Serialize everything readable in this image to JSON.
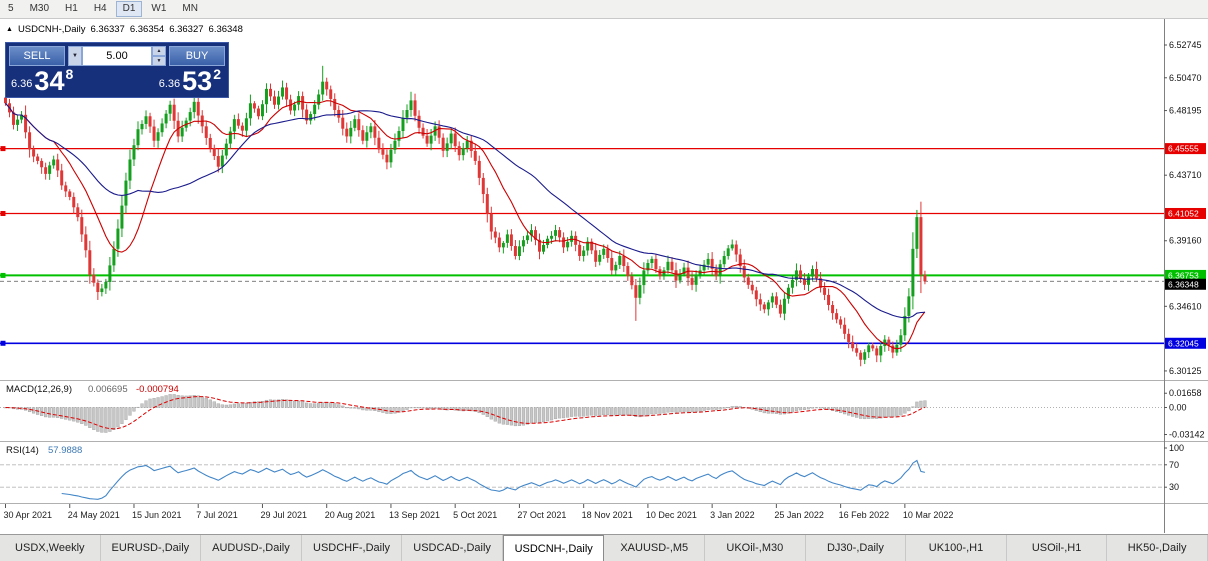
{
  "toolbar": {
    "periods": [
      "5",
      "M30",
      "H1",
      "H4",
      "D1",
      "W1",
      "MN"
    ],
    "active": "D1"
  },
  "chart_header": {
    "symbol": "USDCNH-,Daily",
    "open": "6.36337",
    "high": "6.36354",
    "low": "6.36327",
    "close": "6.36348"
  },
  "icons": {
    "triangle_up": "▲",
    "dropdown_arrow": "▼",
    "spinner_up": "▲",
    "spinner_down": "▼"
  },
  "trade_panel": {
    "sell_label": "SELL",
    "buy_label": "BUY",
    "volume": "5.00",
    "sell_price": {
      "prefix": "6.36",
      "big": "34",
      "sup": "8"
    },
    "buy_price": {
      "prefix": "6.36",
      "big": "53",
      "sup": "2"
    }
  },
  "chart_data": {
    "type": "candlestick",
    "symbol": "USDCNH",
    "timeframe": "Daily",
    "up_color": "#14a01e",
    "down_color": "#e03636",
    "n_candles": 230,
    "close_anchors": [
      0,
      6.487,
      2,
      6.472,
      4,
      6.479,
      6,
      6.455,
      8,
      6.447,
      10,
      6.438,
      12,
      6.448,
      14,
      6.43,
      16,
      6.422,
      18,
      6.408,
      20,
      6.385,
      21,
      6.368,
      23,
      6.356,
      25,
      6.363,
      27,
      6.386,
      29,
      6.416,
      31,
      6.448,
      33,
      6.469,
      35,
      6.478,
      37,
      6.461,
      39,
      6.473,
      41,
      6.486,
      43,
      6.464,
      45,
      6.475,
      47,
      6.488,
      49,
      6.471,
      51,
      6.456,
      53,
      6.443,
      55,
      6.459,
      57,
      6.476,
      59,
      6.468,
      61,
      6.487,
      63,
      6.478,
      65,
      6.497,
      67,
      6.486,
      69,
      6.498,
      71,
      6.482,
      73,
      6.492,
      75,
      6.475,
      77,
      6.486,
      79,
      6.502,
      81,
      6.49,
      83,
      6.477,
      85,
      6.464,
      87,
      6.476,
      89,
      6.461,
      91,
      6.471,
      93,
      6.455,
      95,
      6.446,
      97,
      6.461,
      99,
      6.477,
      101,
      6.489,
      103,
      6.47,
      105,
      6.459,
      107,
      6.471,
      109,
      6.454,
      111,
      6.466,
      113,
      6.451,
      115,
      6.461,
      117,
      6.447,
      119,
      6.424,
      121,
      6.398,
      123,
      6.387,
      125,
      6.396,
      127,
      6.381,
      129,
      6.392,
      131,
      6.399,
      133,
      6.384,
      135,
      6.393,
      137,
      6.399,
      139,
      6.387,
      141,
      6.395,
      143,
      6.381,
      145,
      6.391,
      147,
      6.377,
      149,
      6.386,
      151,
      6.371,
      153,
      6.381,
      155,
      6.367,
      157,
      6.352,
      159,
      6.371,
      161,
      6.379,
      163,
      6.367,
      165,
      6.377,
      167,
      6.364,
      169,
      6.373,
      171,
      6.361,
      173,
      6.371,
      175,
      6.379,
      177,
      6.367,
      179,
      6.381,
      181,
      6.389,
      183,
      6.374,
      185,
      6.361,
      187,
      6.351,
      189,
      6.344,
      191,
      6.353,
      193,
      6.341,
      195,
      6.359,
      197,
      6.371,
      199,
      6.361,
      201,
      6.372,
      203,
      6.359,
      205,
      6.347,
      207,
      6.337,
      209,
      6.327,
      211,
      6.317,
      213,
      6.309,
      215,
      6.319,
      217,
      6.312,
      219,
      6.323,
      221,
      6.314,
      223,
      6.326,
      225,
      6.353,
      226,
      6.386,
      227,
      6.408,
      228,
      6.368,
      229,
      6.36348
    ],
    "wick_overrides": {
      "0": {
        "high": 6.4975
      },
      "23": {
        "low": 6.3505
      },
      "79": {
        "high": 6.513
      },
      "101": {
        "high": 6.495
      },
      "157": {
        "low": 6.336
      },
      "213": {
        "low": 6.3045
      },
      "227": {
        "high": 6.413
      }
    },
    "moving_averages": [
      {
        "period": 13,
        "color": "#cc0000"
      },
      {
        "period": 34,
        "color": "#1a1a8c"
      }
    ],
    "levels": [
      {
        "price": 6.45555,
        "label": "6.45555",
        "color": "#e60000",
        "width": 1.2
      },
      {
        "price": 6.41052,
        "label": "6.41052",
        "color": "#e60000",
        "width": 1.2
      },
      {
        "price": 6.36753,
        "label": "6.36753",
        "color": "#00c000",
        "width": 2
      },
      {
        "price": 6.32045,
        "label": "6.32045",
        "color": "#0000e0",
        "width": 1.6
      }
    ],
    "current_price": {
      "price": 6.36348,
      "label": "6.36348",
      "bg": "#000000"
    },
    "y_ticks": [
      "6.52745",
      "6.50470",
      "6.48195",
      "6.43710",
      "6.39160",
      "6.34610",
      "6.30125"
    ],
    "x_labels": [
      {
        "i": 0,
        "t": "30 Apr 2021"
      },
      {
        "i": 16,
        "t": "24 May 2021"
      },
      {
        "i": 32,
        "t": "15 Jun 2021"
      },
      {
        "i": 48,
        "t": "7 Jul 2021"
      },
      {
        "i": 64,
        "t": "29 Jul 2021"
      },
      {
        "i": 80,
        "t": "20 Aug 2021"
      },
      {
        "i": 96,
        "t": "13 Sep 2021"
      },
      {
        "i": 112,
        "t": "5 Oct 2021"
      },
      {
        "i": 128,
        "t": "27 Oct 2021"
      },
      {
        "i": 144,
        "t": "18 Nov 2021"
      },
      {
        "i": 160,
        "t": "10 Dec 2021"
      },
      {
        "i": 176,
        "t": "3 Jan 2022"
      },
      {
        "i": 192,
        "t": "25 Jan 2022"
      },
      {
        "i": 208,
        "t": "16 Feb 2022"
      },
      {
        "i": 224,
        "t": "10 Mar 2022"
      }
    ],
    "macd": {
      "label": "MACD(12,26,9)",
      "main_value": "0.006695",
      "signal_value": "-0.000794",
      "y_ticks": [
        "0.01658",
        "0.00",
        "-0.03142"
      ],
      "hist_fill": "#c6c6c6",
      "hist_stroke": "#9e9e9e",
      "signal_color": "#dd0000"
    },
    "rsi": {
      "label": "RSI(14)",
      "value": "57.9888",
      "y_ticks": [
        "100",
        "70",
        "30"
      ],
      "color": "#4286c8"
    }
  },
  "tabs": {
    "active_index": 5,
    "items": [
      "USDX,Weekly",
      "EURUSD-,Daily",
      "AUDUSD-,Daily",
      "USDCHF-,Daily",
      "USDCAD-,Daily",
      "USDCNH-,Daily",
      "XAUUSD-,M5",
      "UKOil-,M30",
      "DJ30-,Daily",
      "UK100-,H1",
      "USOil-,H1",
      "HK50-,Daily"
    ]
  }
}
